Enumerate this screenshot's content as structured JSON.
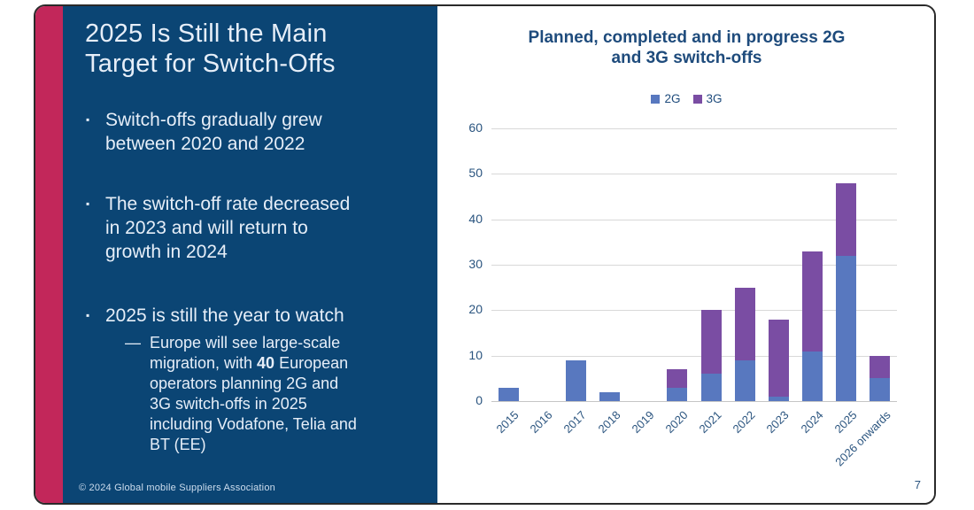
{
  "slide": {
    "colors": {
      "stripe_red": "#c2275a",
      "panel_navy": "#0b4574",
      "panel_text": "#e6eef8",
      "footer_text": "#cdddee",
      "chart_text": "#1e4b7c",
      "tick_text": "#2a547f",
      "gridline": "#d8d8d8",
      "axisline": "#c6c6c6"
    },
    "left_panel": {
      "title": "2025 Is Still the Main\nTarget for Switch-Offs",
      "bullet_marker": "▪",
      "bullets": [
        "Switch-offs gradually grew\nbetween 2020 and 2022",
        "The switch-off rate decreased\nin 2023 and will return to\ngrowth in 2024",
        "2025 is still the year to watch"
      ],
      "sub_bullet": {
        "dash": "—",
        "part1": "Europe will see large-scale\nmigration, with ",
        "bold": "40",
        "part2": " European\noperators planning 2G and\n3G switch-offs in 2025\nincluding Vodafone, Telia and\nBT (EE)"
      },
      "footer": "© 2024 Global mobile Suppliers Association"
    },
    "page_number": "7"
  },
  "chart_data": {
    "type": "bar",
    "stacked": true,
    "title": "Planned, completed and in progress 2G\nand 3G switch-offs",
    "categories": [
      "2015",
      "2016",
      "2017",
      "2018",
      "2019",
      "2020",
      "2021",
      "2022",
      "2023",
      "2024",
      "2025",
      "2026 onwards"
    ],
    "series": [
      {
        "name": "2G",
        "color": "#5878bf",
        "values": [
          3,
          0,
          9,
          2,
          0,
          3,
          6,
          9,
          1,
          11,
          32,
          5
        ]
      },
      {
        "name": "3G",
        "color": "#7a4da3",
        "values": [
          0,
          0,
          0,
          0,
          0,
          4,
          14,
          16,
          17,
          22,
          16,
          5
        ]
      }
    ],
    "totals": [
      3,
      0,
      9,
      2,
      0,
      7,
      20,
      25,
      18,
      33,
      48,
      10
    ],
    "y_ticks": [
      0,
      10,
      20,
      30,
      40,
      50,
      60
    ],
    "ylim": [
      0,
      60
    ],
    "xlabel": "",
    "ylabel": "",
    "grid": true,
    "legend_position": "top"
  }
}
